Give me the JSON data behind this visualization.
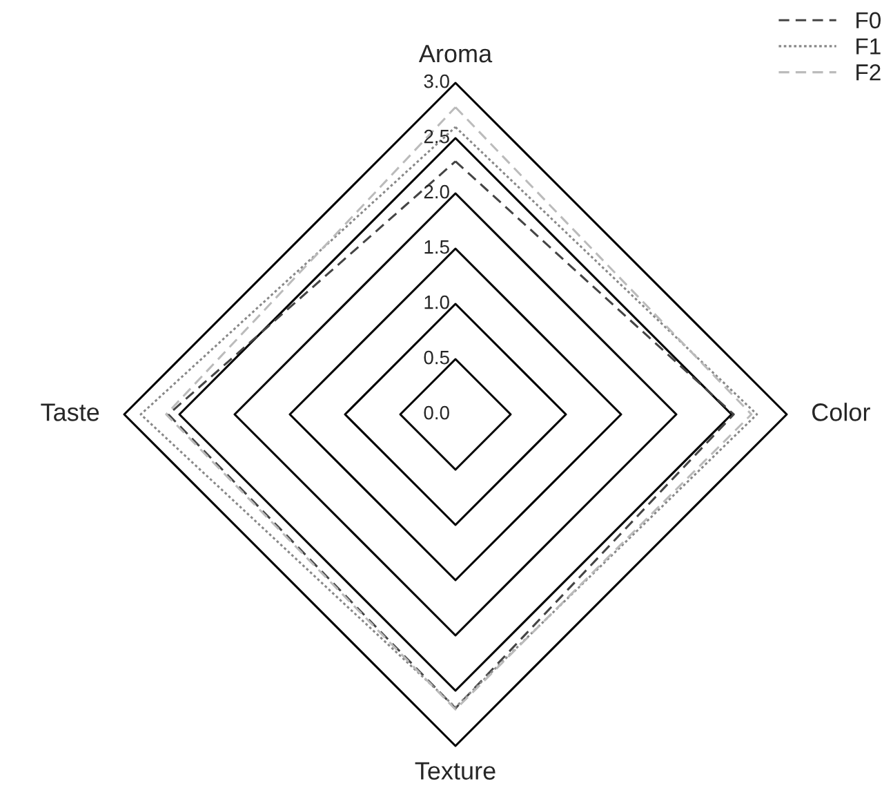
{
  "chart_data": {
    "type": "radar",
    "categories": [
      "Aroma",
      "Color",
      "Texture",
      "Taste"
    ],
    "ylim": [
      0,
      3.0
    ],
    "yticks": [
      {
        "value": 0,
        "label": "0.0"
      },
      {
        "value": 0.5,
        "label": "0.5"
      },
      {
        "value": 1.0,
        "label": "1.0"
      },
      {
        "value": 1.5,
        "label": "1.5"
      },
      {
        "value": 2.0,
        "label": "2.0"
      },
      {
        "value": 2.5,
        "label": "2.5"
      },
      {
        "value": 3.0,
        "label": "3.0"
      }
    ],
    "grid": true,
    "legend": "top right",
    "marker": "none",
    "series": [
      {
        "name": "F0",
        "color": "#444444",
        "line_style": "dashed",
        "values": [
          2.29,
          2.52,
          2.66,
          2.6
        ]
      },
      {
        "name": "F1",
        "color": "#888888",
        "line_style": "dotted",
        "values": [
          2.6,
          2.73,
          2.65,
          2.85
        ]
      },
      {
        "name": "F2",
        "color": "#bbbbbb",
        "line_style": "dashed",
        "values": [
          2.78,
          2.68,
          2.67,
          2.62
        ]
      }
    ]
  }
}
